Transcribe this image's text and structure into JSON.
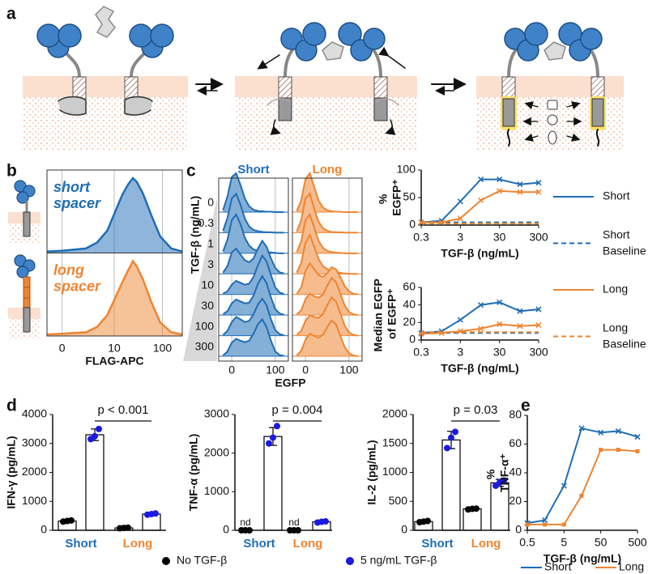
{
  "panel_labels": [
    "a",
    "b",
    "c",
    "d",
    "e"
  ],
  "chart_data": [
    {
      "type": "density",
      "xlabel": "FLAG-APC",
      "xscale": "symlog",
      "xlim": [
        -1,
        250
      ],
      "xticks": [
        0,
        10,
        100
      ],
      "ylim": [
        0,
        100
      ],
      "x": [
        -1,
        0,
        2,
        4,
        7,
        10,
        15,
        20,
        25,
        30,
        40,
        60,
        90,
        150,
        250
      ],
      "series": [
        {
          "name": "short spacer",
          "color": "#1f6db5",
          "values": [
            2,
            3,
            6,
            14,
            30,
            52,
            78,
            92,
            100,
            95,
            80,
            50,
            22,
            6,
            2
          ]
        },
        {
          "name": "long spacer",
          "color": "#ee8532",
          "values": [
            2,
            3,
            5,
            12,
            28,
            48,
            72,
            88,
            100,
            93,
            76,
            45,
            18,
            5,
            2
          ]
        }
      ]
    },
    {
      "type": "ridgeline",
      "ylabel": "TGF-β (ng/mL)",
      "xlabel": "EGFP",
      "xlim": [
        -30,
        130
      ],
      "xticks": [
        0,
        100
      ],
      "ylim": [
        0,
        100
      ],
      "categories": [
        "0",
        "0.3",
        "1",
        "3",
        "10",
        "30",
        "100",
        "300"
      ],
      "x": [
        -20,
        -10,
        0,
        10,
        20,
        30,
        40,
        50,
        60,
        70,
        80,
        90,
        100,
        110,
        120
      ],
      "series": [
        {
          "name": "Short",
          "color": "#1f6db5",
          "rows": [
            [
              5,
              40,
              90,
              100,
              70,
              35,
              15,
              6,
              3,
              2,
              1,
              1,
              0,
              0,
              0
            ],
            [
              5,
              38,
              88,
              100,
              72,
              36,
              16,
              7,
              4,
              2,
              1,
              1,
              0,
              0,
              0
            ],
            [
              5,
              35,
              85,
              100,
              75,
              40,
              20,
              10,
              6,
              4,
              3,
              2,
              1,
              0,
              0
            ],
            [
              3,
              20,
              55,
              65,
              50,
              35,
              30,
              40,
              65,
              85,
              70,
              40,
              15,
              4,
              1
            ],
            [
              2,
              8,
              25,
              35,
              30,
              25,
              28,
              45,
              75,
              100,
              85,
              50,
              18,
              5,
              1
            ],
            [
              2,
              10,
              30,
              40,
              35,
              30,
              32,
              50,
              80,
              100,
              82,
              45,
              15,
              4,
              1
            ],
            [
              2,
              12,
              35,
              48,
              42,
              35,
              38,
              55,
              80,
              95,
              78,
              42,
              14,
              4,
              1
            ],
            [
              2,
              12,
              35,
              45,
              40,
              36,
              40,
              58,
              82,
              95,
              75,
              40,
              12,
              3,
              1
            ]
          ]
        },
        {
          "name": "Long",
          "color": "#ee8532",
          "rows": [
            [
              3,
              30,
              85,
              100,
              65,
              30,
              12,
              5,
              2,
              1,
              1,
              0,
              0,
              0,
              0
            ],
            [
              3,
              32,
              88,
              100,
              62,
              28,
              12,
              5,
              2,
              1,
              1,
              0,
              0,
              0,
              0
            ],
            [
              3,
              30,
              85,
              100,
              66,
              32,
              14,
              6,
              3,
              2,
              1,
              0,
              0,
              0,
              0
            ],
            [
              3,
              28,
              80,
              100,
              70,
              38,
              20,
              12,
              8,
              5,
              3,
              1,
              0,
              0,
              0
            ],
            [
              2,
              18,
              60,
              80,
              65,
              50,
              45,
              55,
              70,
              65,
              45,
              22,
              8,
              2,
              0
            ],
            [
              2,
              12,
              40,
              55,
              48,
              45,
              52,
              75,
              95,
              85,
              55,
              25,
              8,
              2,
              0
            ],
            [
              2,
              12,
              38,
              52,
              48,
              46,
              55,
              78,
              98,
              88,
              58,
              26,
              8,
              2,
              0
            ],
            [
              2,
              14,
              42,
              58,
              52,
              48,
              55,
              75,
              92,
              82,
              52,
              24,
              7,
              2,
              0
            ]
          ]
        }
      ]
    },
    {
      "type": "line",
      "xscale": "log",
      "ylabel": "% EGFP⁺",
      "xlabel": "TGF-β (ng/mL)",
      "legend": "right",
      "x": [
        0.3,
        1,
        3,
        10,
        30,
        100,
        300
      ],
      "xlim": [
        0.3,
        300
      ],
      "xticks": [
        0.3,
        3,
        30,
        300
      ],
      "ylim": [
        0,
        100
      ],
      "yticks": [
        0,
        50,
        100
      ],
      "series": [
        {
          "name": "Short",
          "color": "#1f6db5",
          "marker": "x",
          "values": [
            5,
            8,
            43,
            83,
            83,
            74,
            77
          ]
        },
        {
          "name": "Short Baseline",
          "color": "#1f6db5",
          "dash": true,
          "values": [
            5,
            5,
            5,
            5,
            5,
            5,
            5
          ]
        },
        {
          "name": "Long",
          "color": "#ee8532",
          "marker": "x",
          "values": [
            5,
            5,
            12,
            45,
            62,
            60,
            60
          ]
        },
        {
          "name": "Long Baseline",
          "color": "#ee8532",
          "dash": true,
          "values": [
            3,
            3,
            3,
            3,
            3,
            3,
            3
          ]
        }
      ]
    },
    {
      "type": "line",
      "xscale": "log",
      "ylabel": "Median EGFP of EGFP⁺",
      "xlabel": "TGF-β (ng/mL)",
      "x": [
        0.3,
        1,
        3,
        10,
        30,
        100,
        300
      ],
      "xlim": [
        0.3,
        300
      ],
      "xticks": [
        0.3,
        3,
        30,
        300
      ],
      "ylim": [
        0,
        60
      ],
      "yticks": [
        0,
        20,
        40,
        60
      ],
      "series": [
        {
          "color": "#1f6db5",
          "marker": "x",
          "values": [
            8,
            10,
            23,
            40,
            43,
            33,
            35
          ]
        },
        {
          "color": "#1f6db5",
          "dash": true,
          "values": [
            8,
            8,
            8,
            8,
            8,
            8,
            8
          ]
        },
        {
          "color": "#ee8532",
          "marker": "x",
          "values": [
            7,
            8,
            10,
            13,
            18,
            16,
            17
          ]
        },
        {
          "color": "#ee8532",
          "dash": true,
          "values": [
            9,
            9,
            9,
            9,
            9,
            9,
            9
          ]
        }
      ]
    },
    {
      "type": "bar-points",
      "ylabel": "IFN-γ (pg/mL)",
      "annotation": "p < 0.001",
      "legend": "bottom",
      "categories": [
        "Short",
        "Long"
      ],
      "category_colors": [
        "#1f6db5",
        "#ee8532"
      ],
      "ylim": [
        0,
        4000
      ],
      "yticks": [
        0,
        1000,
        2000,
        3000,
        4000
      ],
      "series": [
        {
          "name": "No TGF-β",
          "color": "#000000",
          "values": [
            320,
            80
          ],
          "errors": [
            30,
            20
          ],
          "points": [
            [
              300,
              320,
              340
            ],
            [
              70,
              80,
              90
            ]
          ]
        },
        {
          "name": "5 ng/mL TGF-β",
          "color": "#1a1ae0",
          "values": [
            3300,
            560
          ],
          "errors": [
            200,
            30
          ],
          "points": [
            [
              3150,
              3250,
              3500
            ],
            [
              540,
              560,
              580
            ]
          ]
        }
      ]
    },
    {
      "type": "bar-points",
      "ylabel": "TNF-α (pg/mL)",
      "annotation": "p = 0.004",
      "categories": [
        "Short",
        "Long"
      ],
      "category_colors": [
        "#1f6db5",
        "#ee8532"
      ],
      "ylim": [
        0,
        3000
      ],
      "yticks": [
        0,
        1000,
        2000,
        3000
      ],
      "series": [
        {
          "color": "#000000",
          "values": [
            null,
            null
          ],
          "value_labels": [
            "nd",
            "nd"
          ],
          "points": [
            [
              0,
              0,
              0
            ],
            [
              0,
              0,
              0
            ]
          ]
        },
        {
          "color": "#1a1ae0",
          "values": [
            2430,
            220
          ],
          "errors": [
            230,
            20
          ],
          "points": [
            [
              2250,
              2400,
              2700
            ],
            [
              200,
              220,
              230
            ]
          ]
        }
      ]
    },
    {
      "type": "bar-points",
      "ylabel": "IL-2 (pg/mL)",
      "annotation": "p = 0.03",
      "categories": [
        "Short",
        "Long"
      ],
      "category_colors": [
        "#1f6db5",
        "#ee8532"
      ],
      "ylim": [
        0,
        2000
      ],
      "yticks": [
        0,
        500,
        1000,
        1500,
        2000
      ],
      "series": [
        {
          "color": "#000000",
          "values": [
            150,
            370
          ],
          "errors": [
            10,
            10
          ],
          "points": [
            [
              140,
              150,
              160
            ],
            [
              360,
              370,
              375
            ]
          ]
        },
        {
          "color": "#1a1ae0",
          "values": [
            1560,
            820
          ],
          "errors": [
            150,
            60
          ],
          "points": [
            [
              1420,
              1600,
              1700
            ],
            [
              770,
              830,
              860
            ]
          ]
        }
      ]
    },
    {
      "type": "line",
      "xscale": "log",
      "ylabel": "% TNF-α⁺",
      "xlabel": "TGF-β (ng/mL)",
      "legend": "bottom",
      "x": [
        0.5,
        1.5,
        5,
        15,
        50,
        150,
        500
      ],
      "xlim": [
        0.5,
        500
      ],
      "xticks": [
        0.5,
        5,
        50,
        500
      ],
      "ylim": [
        0,
        80
      ],
      "yticks": [
        0,
        20,
        40,
        60,
        80
      ],
      "series": [
        {
          "name": "Short",
          "color": "#1f6db5",
          "marker": "x",
          "values": [
            5,
            7,
            31,
            71,
            68,
            69,
            65
          ]
        },
        {
          "name": "Long",
          "color": "#ee8532",
          "marker": "s",
          "values": [
            4,
            4,
            4,
            24,
            56,
            56,
            55
          ]
        }
      ]
    }
  ]
}
